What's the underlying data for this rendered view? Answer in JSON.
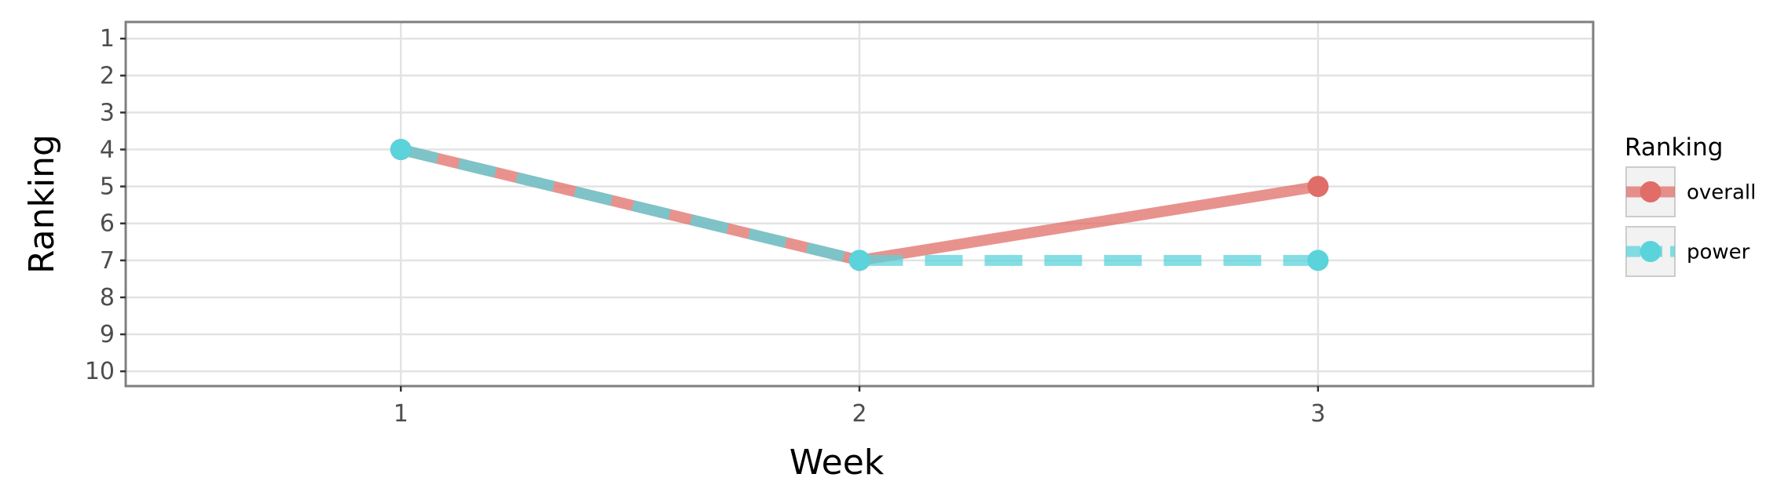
{
  "chart_data": {
    "type": "line",
    "xlabel": "Week",
    "ylabel": "Ranking",
    "x": [
      1,
      2,
      3
    ],
    "x_tick_labels": [
      "1",
      "2",
      "3"
    ],
    "xlim": [
      0.4,
      3.6
    ],
    "ylim": [
      10.4,
      0.55
    ],
    "y_reversed": true,
    "y_ticks": [
      1,
      2,
      3,
      4,
      5,
      6,
      7,
      8,
      9,
      10
    ],
    "y_tick_labels": [
      "1",
      "2",
      "3",
      "4",
      "5",
      "6",
      "7",
      "8",
      "9",
      "10"
    ],
    "grid": true,
    "legend": {
      "title": "Ranking",
      "position": "right"
    },
    "series": [
      {
        "name": "overall",
        "values": [
          4,
          7,
          5
        ],
        "color": "#e06d68",
        "line_style": "solid"
      },
      {
        "name": "power",
        "values": [
          4,
          7,
          7
        ],
        "color": "#5bd3db",
        "line_style": "dashed"
      }
    ]
  }
}
